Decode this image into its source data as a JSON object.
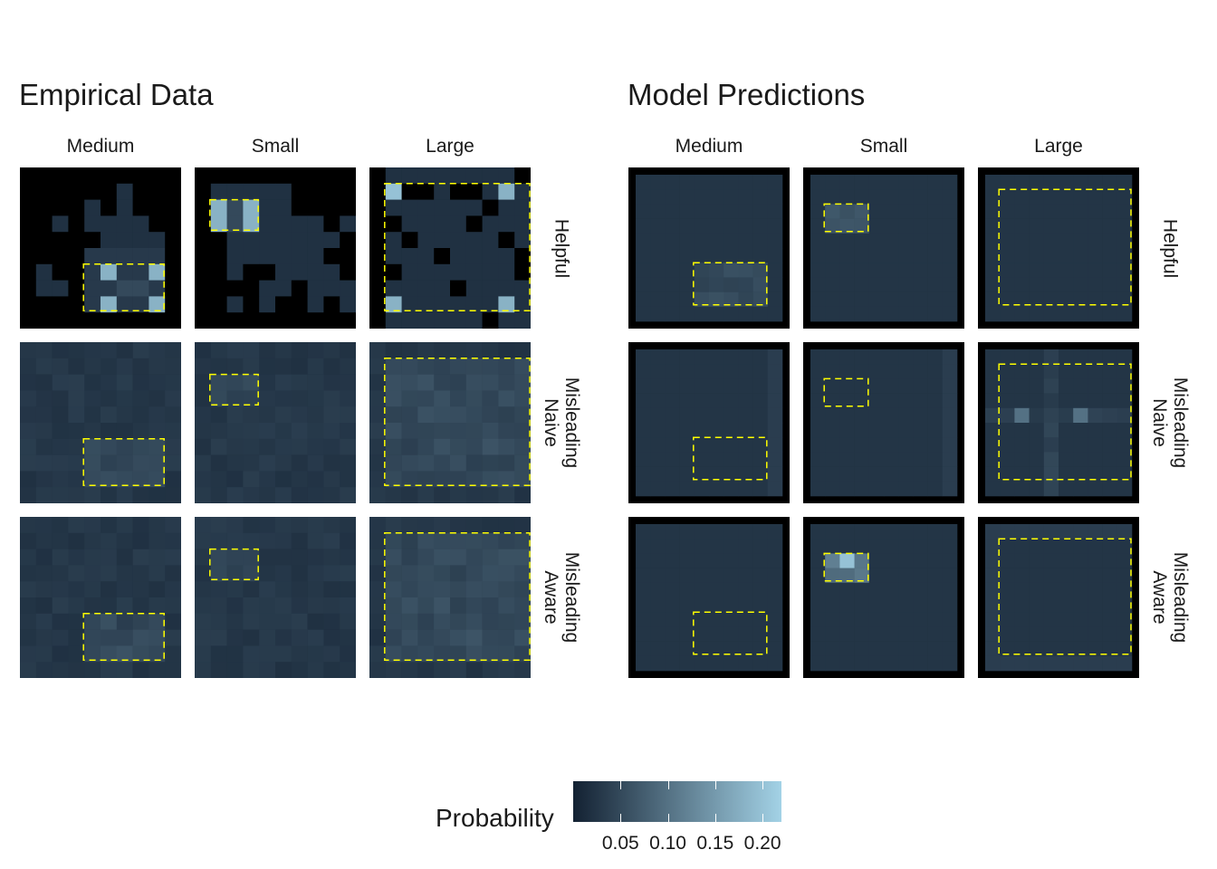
{
  "chart_data": {
    "type": "heatmap",
    "panels": [
      {
        "title": "Empirical Data",
        "columns": [
          "Medium",
          "Small",
          "Large"
        ],
        "rows": [
          "Helpful",
          "Misleading\nNaive",
          "Misleading\nAware"
        ]
      },
      {
        "title": "Model Predictions",
        "columns": [
          "Medium",
          "Small",
          "Large"
        ],
        "rows": [
          "Helpful",
          "Misleading\nNaive",
          "Misleading\nAware"
        ]
      }
    ],
    "grid_size": 10,
    "highlight_box_color": "#ffff00",
    "legend": {
      "title": "Probability",
      "ticks": [
        "0.05",
        "0.10",
        "0.15",
        "0.20"
      ],
      "tick_values": [
        0.05,
        0.1,
        0.15,
        0.2
      ],
      "min": 0.0,
      "max": 0.22,
      "color_low": "#132132",
      "color_high": "#a3d2e6"
    },
    "boxes": {
      "Medium": {
        "col_start": 4,
        "col_end": 8,
        "row_start": 6,
        "row_end": 8
      },
      "Small": {
        "col_start": 1,
        "col_end": 3,
        "row_start": 2,
        "row_end": 3
      },
      "Large": {
        "col_start": 1,
        "col_end": 9,
        "row_start": 1,
        "row_end": 8
      }
    },
    "notes": "cell_values are approximate probabilities read from color; grid rows listed top to bottom",
    "cell_values": {
      "empirical": {
        "Helpful": {
          "Medium": [
            [
              0,
              0,
              0,
              0,
              0,
              0,
              0,
              0,
              0,
              0
            ],
            [
              0,
              0,
              0,
              0,
              0,
              0,
              0.02,
              0,
              0,
              0
            ],
            [
              0,
              0,
              0,
              0,
              0.02,
              0,
              0.02,
              0,
              0,
              0
            ],
            [
              0,
              0,
              0.02,
              0,
              0.02,
              0.02,
              0.02,
              0.02,
              0,
              0
            ],
            [
              0,
              0,
              0,
              0,
              0,
              0.02,
              0.02,
              0.02,
              0.02,
              0
            ],
            [
              0,
              0,
              0,
              0,
              0.03,
              0.03,
              0.03,
              0.03,
              0.03,
              0
            ],
            [
              0,
              0.02,
              0,
              0,
              0.03,
              0.18,
              0.03,
              0.03,
              0.18,
              0
            ],
            [
              0,
              0.02,
              0.02,
              0,
              0.03,
              0.03,
              0.05,
              0.05,
              0.03,
              0
            ],
            [
              0,
              0,
              0,
              0,
              0.03,
              0.18,
              0.03,
              0.03,
              0.18,
              0
            ],
            [
              0,
              0,
              0,
              0,
              0,
              0,
              0,
              0,
              0,
              0
            ]
          ],
          "Small": [
            [
              0,
              0,
              0,
              0,
              0,
              0,
              0,
              0,
              0,
              0
            ],
            [
              0,
              0.02,
              0.02,
              0.02,
              0.02,
              0.02,
              0,
              0,
              0,
              0
            ],
            [
              0,
              0.18,
              0.05,
              0.18,
              0.02,
              0.02,
              0,
              0,
              0,
              0
            ],
            [
              0,
              0.18,
              0.05,
              0.18,
              0.02,
              0.02,
              0.02,
              0.02,
              0,
              0.02
            ],
            [
              0,
              0,
              0.02,
              0.02,
              0.02,
              0.02,
              0.02,
              0.02,
              0.02,
              0
            ],
            [
              0,
              0,
              0.02,
              0.02,
              0.02,
              0.02,
              0.02,
              0.02,
              0,
              0
            ],
            [
              0,
              0,
              0.02,
              0,
              0,
              0.02,
              0.02,
              0.02,
              0.02,
              0
            ],
            [
              0,
              0,
              0,
              0,
              0.02,
              0.02,
              0,
              0.02,
              0.02,
              0.02
            ],
            [
              0,
              0,
              0.02,
              0,
              0.02,
              0,
              0,
              0.02,
              0,
              0.02
            ],
            [
              0,
              0,
              0,
              0,
              0,
              0,
              0,
              0,
              0,
              0
            ]
          ],
          "Large": [
            [
              0,
              0.02,
              0.02,
              0.02,
              0.02,
              0.02,
              0.02,
              0.02,
              0.02,
              0
            ],
            [
              0,
              0.2,
              0,
              0,
              0.02,
              0,
              0,
              0.02,
              0.18,
              0.02
            ],
            [
              0,
              0.02,
              0.02,
              0.02,
              0.02,
              0.02,
              0.02,
              0,
              0.02,
              0.02
            ],
            [
              0,
              0,
              0.02,
              0.02,
              0.02,
              0.02,
              0,
              0.02,
              0.02,
              0.02
            ],
            [
              0,
              0.02,
              0,
              0.02,
              0.02,
              0.02,
              0.02,
              0.02,
              0,
              0.02
            ],
            [
              0,
              0.02,
              0.02,
              0.02,
              0,
              0.02,
              0.02,
              0.02,
              0.02,
              0
            ],
            [
              0,
              0,
              0.02,
              0.02,
              0.02,
              0.02,
              0.02,
              0.02,
              0.02,
              0
            ],
            [
              0,
              0.02,
              0.02,
              0.02,
              0.02,
              0,
              0.02,
              0.02,
              0.02,
              0.02
            ],
            [
              0,
              0.18,
              0.02,
              0.02,
              0.02,
              0.02,
              0.02,
              0.02,
              0.18,
              0.02
            ],
            [
              0,
              0.02,
              0.02,
              0.02,
              0.02,
              0.02,
              0.02,
              0,
              0.02,
              0.02
            ]
          ]
        }
      }
    }
  }
}
